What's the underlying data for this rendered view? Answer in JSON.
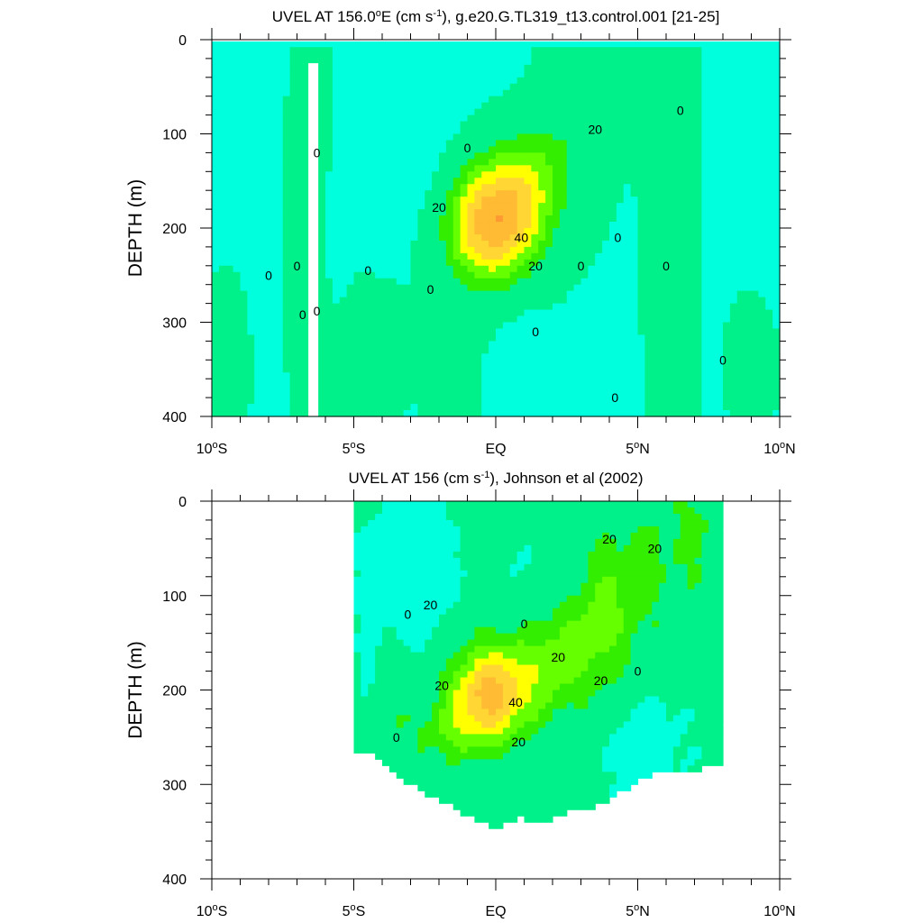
{
  "colors": {
    "c_below_minus20": "#33e6ee",
    "c_minus20_0": "#00ffdd",
    "c_0_20": "#00f08a",
    "c_20_30": "#33ee00",
    "c_30_40": "#66ff00",
    "c_40_50": "#ffff00",
    "c_50_60": "#ffd633",
    "c_60_70": "#ffbb33",
    "c_70_80": "#ff9933",
    "contour_line": "#000000"
  },
  "chart_data": [
    {
      "type": "heatmap",
      "title": "UVEL AT 156.0°E (cm s⁻¹), g.e20.G.TL319_t13.control.001 [21-25]",
      "title_parts": {
        "pre": "UVEL AT 156.0",
        "deg": "o",
        "mid": "E (cm s",
        "sup": "-1",
        "post": "), g.e20.G.TL319_t13.control.001 [21-25]"
      },
      "ylabel": "DEPTH (m)",
      "x_ticks": [
        {
          "value": -10,
          "num": "10",
          "hemi": "S"
        },
        {
          "value": -5,
          "num": "5",
          "hemi": "S"
        },
        {
          "value": 0,
          "num": "EQ",
          "hemi": ""
        },
        {
          "value": 5,
          "num": "5",
          "hemi": "N"
        },
        {
          "value": 10,
          "num": "10",
          "hemi": "N"
        }
      ],
      "y_ticks": [
        0,
        100,
        200,
        300,
        400
      ],
      "xlim": [
        -10,
        10
      ],
      "ylim": [
        0,
        400
      ],
      "levels": [
        -20,
        0,
        20,
        30,
        40,
        50,
        60,
        70
      ],
      "contour_labels": [
        {
          "text": "0",
          "x": -6.3,
          "y": 120
        },
        {
          "text": "0",
          "x": -8.0,
          "y": 250
        },
        {
          "text": "0",
          "x": -7.0,
          "y": 240
        },
        {
          "text": "0",
          "x": -6.8,
          "y": 292
        },
        {
          "text": "0",
          "x": -6.3,
          "y": 288
        },
        {
          "text": "0",
          "x": -4.5,
          "y": 245
        },
        {
          "text": "0",
          "x": -2.3,
          "y": 265
        },
        {
          "text": "0",
          "x": -1.0,
          "y": 115
        },
        {
          "text": "0",
          "x": 1.4,
          "y": 310
        },
        {
          "text": "0",
          "x": 3.0,
          "y": 240
        },
        {
          "text": "0",
          "x": 4.3,
          "y": 210
        },
        {
          "text": "0",
          "x": 4.2,
          "y": 380
        },
        {
          "text": "0",
          "x": 6.0,
          "y": 240
        },
        {
          "text": "0",
          "x": 6.5,
          "y": 75
        },
        {
          "text": "0",
          "x": 8.0,
          "y": 340
        },
        {
          "text": "20",
          "x": -2.0,
          "y": 178
        },
        {
          "text": "20",
          "x": 1.4,
          "y": 240
        },
        {
          "text": "20",
          "x": 3.5,
          "y": 95
        },
        {
          "text": "40",
          "x": 0.9,
          "y": 210
        }
      ]
    },
    {
      "type": "heatmap",
      "title": "UVEL AT 156 (cm s⁻¹), Johnson et al (2002)",
      "title_parts": {
        "pre": "UVEL AT 156 (cm s",
        "deg": "",
        "mid": "",
        "sup": "-1",
        "post": "), Johnson et al (2002)"
      },
      "ylabel": "DEPTH (m)",
      "x_ticks": [
        {
          "value": -10,
          "num": "10",
          "hemi": "S"
        },
        {
          "value": -5,
          "num": "5",
          "hemi": "S"
        },
        {
          "value": 0,
          "num": "EQ",
          "hemi": ""
        },
        {
          "value": 5,
          "num": "5",
          "hemi": "N"
        },
        {
          "value": 10,
          "num": "10",
          "hemi": "N"
        }
      ],
      "y_ticks": [
        0,
        100,
        200,
        300,
        400
      ],
      "xlim": [
        -10,
        10
      ],
      "ylim": [
        0,
        400
      ],
      "levels": [
        -20,
        0,
        20,
        30,
        40,
        50,
        60,
        70
      ],
      "data_extent": {
        "x": [
          -5,
          8
        ],
        "bottom_depth_range": [
          265,
          350
        ]
      },
      "contour_labels": [
        {
          "text": "0",
          "x": -3.1,
          "y": 120
        },
        {
          "text": "0",
          "x": 1.0,
          "y": 130
        },
        {
          "text": "0",
          "x": -3.5,
          "y": 250
        },
        {
          "text": "0",
          "x": 5.0,
          "y": 180
        },
        {
          "text": "20",
          "x": -2.3,
          "y": 110
        },
        {
          "text": "20",
          "x": 4.0,
          "y": 40
        },
        {
          "text": "20",
          "x": 5.6,
          "y": 50
        },
        {
          "text": "20",
          "x": -1.9,
          "y": 195
        },
        {
          "text": "20",
          "x": 2.2,
          "y": 165
        },
        {
          "text": "20",
          "x": 3.7,
          "y": 190
        },
        {
          "text": "20",
          "x": 0.8,
          "y": 255
        },
        {
          "text": "40",
          "x": 0.7,
          "y": 213
        }
      ]
    }
  ]
}
